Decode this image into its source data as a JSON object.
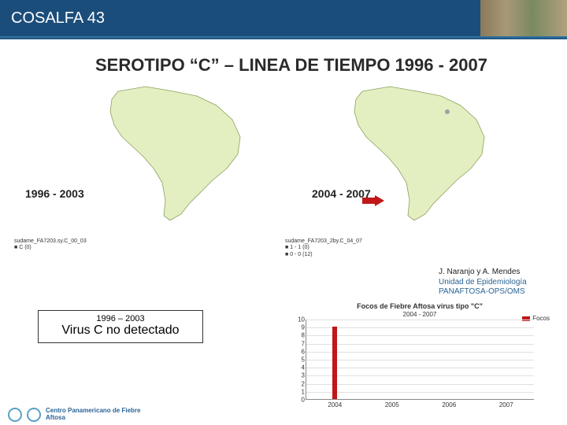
{
  "header": {
    "title": "COSALFA 43"
  },
  "title": "SEROTIPO “C” – LINEA DE TIEMPO 1996 - 2007",
  "maps": {
    "land_fill": "#e3efc0",
    "land_stroke": "#8aa060",
    "range_left": "1996 - 2003",
    "range_right": "2004 - 2007",
    "legend_left_1": "sudame_FA7203.sy.C_00_03",
    "legend_left_2": "C (0)",
    "legend_right_1": "sudame_FA7203_2by.C_04_07",
    "legend_right_2": "1 - 1  (0)",
    "legend_right_3": "0 - 0  (12)",
    "arrow_color": "#c01818",
    "marker_color": "#a0a0a0"
  },
  "attribution": {
    "line1": "J. Naranjo y A. Mendes",
    "line2": "Unidad de Epidemiología",
    "line3": "PANAFTOSA-OPS/OMS"
  },
  "box": {
    "line1": "1996 – 2003",
    "line2": "Virus C no detectado"
  },
  "chart": {
    "title": "Focos de Fiebre Aftosa virus tipo \"C\"",
    "subtitle": "2004 - 2007",
    "legend_label": "Focos",
    "bar_color": "#c01818",
    "grid_color": "#e0e0e0",
    "axis_color": "#888888",
    "ymin": 0,
    "ymax": 10,
    "ystep": 1,
    "categories": [
      "2004",
      "2005",
      "2006",
      "2007"
    ],
    "values": [
      9,
      0,
      0,
      0
    ]
  },
  "footer": {
    "line1": "Centro Panamericano de Fiebre",
    "line2": "Aftosa"
  }
}
